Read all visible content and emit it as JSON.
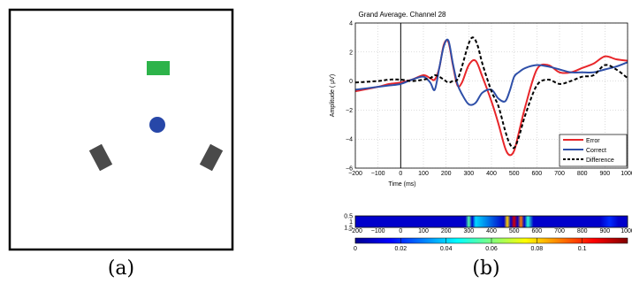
{
  "panel_a": {
    "caption": "(a)",
    "colors": {
      "border": "#000000",
      "target": "#2db34a",
      "ball": "#2747a8",
      "paddle": "#4a4a4a"
    }
  },
  "panel_b": {
    "caption": "(b)"
  },
  "chart_data": [
    {
      "type": "line",
      "title": "Grand Average. Channel 28",
      "xlabel": "Time (ms)",
      "ylabel": "Amplitude (  μV)",
      "xlim": [
        -200,
        1000
      ],
      "ylim": [
        -6,
        4
      ],
      "xticks": [
        -200,
        -100,
        0,
        100,
        200,
        300,
        400,
        500,
        600,
        700,
        800,
        900,
        1000
      ],
      "yticks": [
        -6,
        -4,
        -2,
        0,
        2,
        4
      ],
      "grid": true,
      "legend_position": "bottom-right",
      "annotations": [
        "vertical line at t = 0"
      ],
      "series": [
        {
          "name": "Error",
          "color": "#e8262a",
          "style": "solid",
          "x": [
            -200,
            -100,
            -50,
            0,
            50,
            100,
            130,
            150,
            170,
            190,
            210,
            230,
            250,
            270,
            300,
            330,
            360,
            400,
            430,
            460,
            480,
            500,
            520,
            550,
            600,
            650,
            700,
            750,
            800,
            850,
            900,
            950,
            1000
          ],
          "y": [
            -0.7,
            -0.4,
            -0.2,
            -0.1,
            0.1,
            0.4,
            0.2,
            0.1,
            0.9,
            2.5,
            2.7,
            1.1,
            -0.3,
            -0.1,
            1.1,
            1.4,
            0.3,
            -1.4,
            -2.9,
            -4.6,
            -5.1,
            -4.8,
            -3.6,
            -1.7,
            0.8,
            1.1,
            0.6,
            0.6,
            0.9,
            1.2,
            1.7,
            1.5,
            1.4
          ]
        },
        {
          "name": "Correct",
          "color": "#2e4fa8",
          "style": "solid",
          "x": [
            -200,
            -100,
            -50,
            0,
            50,
            100,
            130,
            150,
            170,
            190,
            210,
            230,
            250,
            270,
            300,
            330,
            360,
            400,
            430,
            460,
            480,
            500,
            520,
            550,
            600,
            650,
            700,
            750,
            800,
            850,
            900,
            950,
            1000
          ],
          "y": [
            -0.6,
            -0.4,
            -0.3,
            -0.2,
            0.1,
            0.3,
            -0.1,
            -0.6,
            0.9,
            2.4,
            2.8,
            1.2,
            -0.2,
            -0.9,
            -1.6,
            -1.5,
            -0.8,
            -0.6,
            -1.2,
            -1.4,
            -0.7,
            0.3,
            0.6,
            0.9,
            1.1,
            1.0,
            0.8,
            0.6,
            0.6,
            0.6,
            0.8,
            1.0,
            1.3
          ]
        },
        {
          "name": "Difference",
          "color": "#000000",
          "style": "dashed",
          "x": [
            -200,
            -100,
            -50,
            0,
            50,
            100,
            130,
            150,
            170,
            190,
            210,
            230,
            250,
            270,
            300,
            320,
            340,
            360,
            400,
            430,
            460,
            480,
            500,
            520,
            550,
            600,
            650,
            700,
            750,
            800,
            850,
            900,
            950,
            1000
          ],
          "y": [
            -0.1,
            0.0,
            0.1,
            0.1,
            0.0,
            0.1,
            0.2,
            0.4,
            0.3,
            0.1,
            -0.1,
            0.0,
            0.1,
            1.0,
            2.6,
            3.0,
            2.4,
            1.2,
            -0.7,
            -1.7,
            -3.4,
            -4.3,
            -4.6,
            -3.9,
            -2.3,
            -0.3,
            0.1,
            -0.2,
            0.0,
            0.3,
            0.4,
            1.1,
            0.8,
            0.2
          ]
        }
      ]
    },
    {
      "type": "heatmap",
      "xlim": [
        -200,
        1000
      ],
      "ylim": [
        0.5,
        1.5
      ],
      "xticks": [
        -200,
        -100,
        0,
        100,
        200,
        300,
        400,
        500,
        600,
        700,
        800,
        900,
        1000
      ],
      "yticks": [
        0.5,
        1,
        1.5
      ],
      "bands": [
        {
          "x": 300,
          "value": 0.055
        },
        {
          "x": 330,
          "value": 0.04
        },
        {
          "x": 470,
          "value": 0.08
        },
        {
          "x": 500,
          "value": 0.11
        },
        {
          "x": 530,
          "value": 0.09
        },
        {
          "x": 560,
          "value": 0.05
        }
      ],
      "colorbar": {
        "ticks": [
          0,
          0.02,
          0.04,
          0.06,
          0.08,
          0.1
        ],
        "range": [
          0,
          0.12
        ]
      }
    }
  ]
}
